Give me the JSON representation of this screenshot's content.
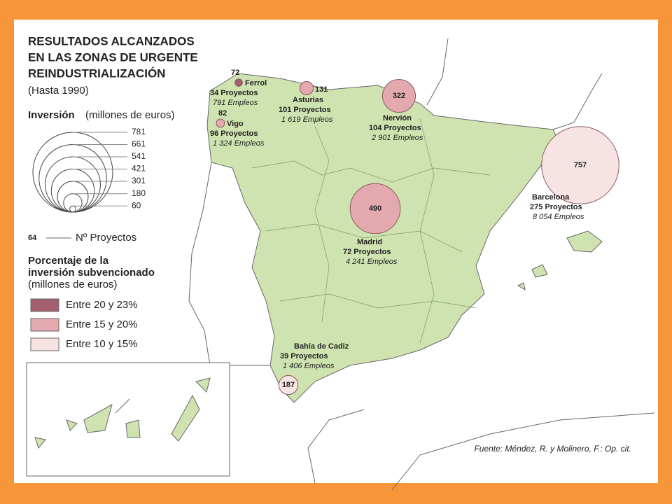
{
  "title": [
    "RESULTADOS ALCANZADOS",
    "EN LAS ZONAS DE URGENTE",
    "REINDUSTRIALIZACIÓN"
  ],
  "subtitle": "(Hasta 1990)",
  "legend": {
    "investment_title": "Inversión",
    "investment_unit": "(millones de euros)",
    "circle_values": [
      781,
      661,
      541,
      421,
      301,
      180,
      60
    ],
    "projects_sample": "64",
    "projects_label": "Nº Proyectos",
    "percent_title": [
      "Porcentaje de la",
      "inversión subvencionado",
      "(millones de euros)"
    ],
    "classes": [
      {
        "label": "Entre 20 y 23%",
        "color": "#a35f6e"
      },
      {
        "label": "Entre 15 y 20%",
        "color": "#e4a9ae"
      },
      {
        "label": "Entre 10 y 15%",
        "color": "#f7e4e2"
      }
    ]
  },
  "zones": [
    {
      "name": "Ferrol",
      "investment": 72,
      "projects": "34 Proyectos",
      "jobs": "791 Empleos",
      "class": 0
    },
    {
      "name": "Vigo",
      "investment": 82,
      "projects": "96 Proyectos",
      "jobs": "1 324 Empleos",
      "class": 1
    },
    {
      "name": "Asturias",
      "investment": 131,
      "projects": "101 Proyectos",
      "jobs": "1 619 Empleos",
      "class": 1
    },
    {
      "name": "Nervión",
      "investment": 322,
      "projects": "104 Proyectos",
      "jobs": "2 901 Empleos",
      "class": 1
    },
    {
      "name": "Madrid",
      "investment": 490,
      "projects": "72 Proyectos",
      "jobs": "4 241 Empleos",
      "class": 1
    },
    {
      "name": "Barcelona",
      "investment": 757,
      "projects": "275 Proyectos",
      "jobs": "8 054 Empleos",
      "class": 2
    },
    {
      "name": "Bahía de Cadiz",
      "investment": 187,
      "projects": "39 Proyectos",
      "jobs": "1 406 Empleos",
      "class": 2
    }
  ],
  "source": "Fuente: Méndez, R. y Molinero, F.: Op. cit."
}
